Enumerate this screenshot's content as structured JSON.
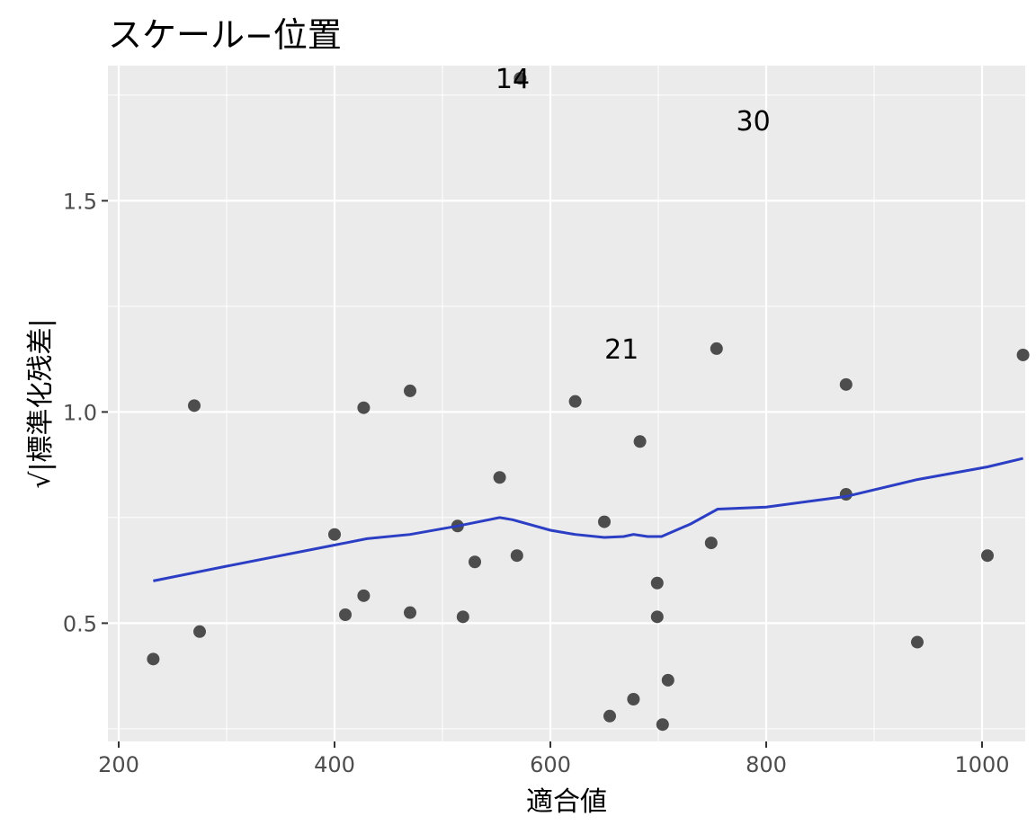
{
  "chart_data": {
    "type": "scatter",
    "title": "スケール−位置",
    "xlabel": "適合値",
    "ylabel": "√|標準化残差|",
    "xlim": [
      190,
      1040
    ],
    "ylim": [
      0.22,
      1.82
    ],
    "x_ticks": [
      200,
      400,
      600,
      800,
      1000
    ],
    "x_tick_labels": [
      "200",
      "400",
      "600",
      "800",
      "1000"
    ],
    "y_ticks": [
      0.5,
      1.0,
      1.5
    ],
    "y_tick_labels": [
      "0.5",
      "1.0",
      "1.5"
    ],
    "grid": true,
    "points": [
      {
        "x": 232,
        "y": 0.415
      },
      {
        "x": 270,
        "y": 1.015
      },
      {
        "x": 275,
        "y": 0.48
      },
      {
        "x": 400,
        "y": 0.71
      },
      {
        "x": 410,
        "y": 0.52
      },
      {
        "x": 427,
        "y": 0.565
      },
      {
        "x": 427,
        "y": 1.01
      },
      {
        "x": 470,
        "y": 1.05
      },
      {
        "x": 470,
        "y": 0.525
      },
      {
        "x": 514,
        "y": 0.73
      },
      {
        "x": 519,
        "y": 0.515
      },
      {
        "x": 530,
        "y": 0.645
      },
      {
        "x": 553,
        "y": 0.845
      },
      {
        "x": 569,
        "y": 0.66
      },
      {
        "x": 572,
        "y": 1.79
      },
      {
        "x": 623,
        "y": 1.025
      },
      {
        "x": 650,
        "y": 0.74
      },
      {
        "x": 655,
        "y": 0.28
      },
      {
        "x": 677,
        "y": 0.32
      },
      {
        "x": 683,
        "y": 0.93
      },
      {
        "x": 699,
        "y": 0.595
      },
      {
        "x": 699,
        "y": 0.515
      },
      {
        "x": 704,
        "y": 0.26
      },
      {
        "x": 709,
        "y": 0.365
      },
      {
        "x": 749,
        "y": 0.69
      },
      {
        "x": 754,
        "y": 1.15
      },
      {
        "x": 874,
        "y": 1.065
      },
      {
        "x": 874,
        "y": 0.805
      },
      {
        "x": 940,
        "y": 0.455
      },
      {
        "x": 1005,
        "y": 0.66
      },
      {
        "x": 1038,
        "y": 1.135
      }
    ],
    "annotations": [
      {
        "text": "14",
        "x": 565,
        "y": 1.79
      },
      {
        "text": "30",
        "x": 788,
        "y": 1.69
      },
      {
        "text": "21",
        "x": 666,
        "y": 1.15
      }
    ],
    "smooth_line": {
      "x": [
        232,
        300,
        400,
        430,
        470,
        514,
        553,
        565,
        600,
        623,
        650,
        668,
        677,
        690,
        703,
        730,
        755,
        800,
        874,
        940,
        1005,
        1038
      ],
      "y": [
        0.6,
        0.635,
        0.685,
        0.7,
        0.71,
        0.73,
        0.75,
        0.745,
        0.72,
        0.71,
        0.703,
        0.705,
        0.71,
        0.705,
        0.705,
        0.735,
        0.77,
        0.775,
        0.8,
        0.84,
        0.87,
        0.89
      ]
    },
    "colors": {
      "panel": "#ebebeb",
      "grid": "#ffffff",
      "point": "#4d4d4d",
      "line": "#2b3ec4"
    }
  }
}
